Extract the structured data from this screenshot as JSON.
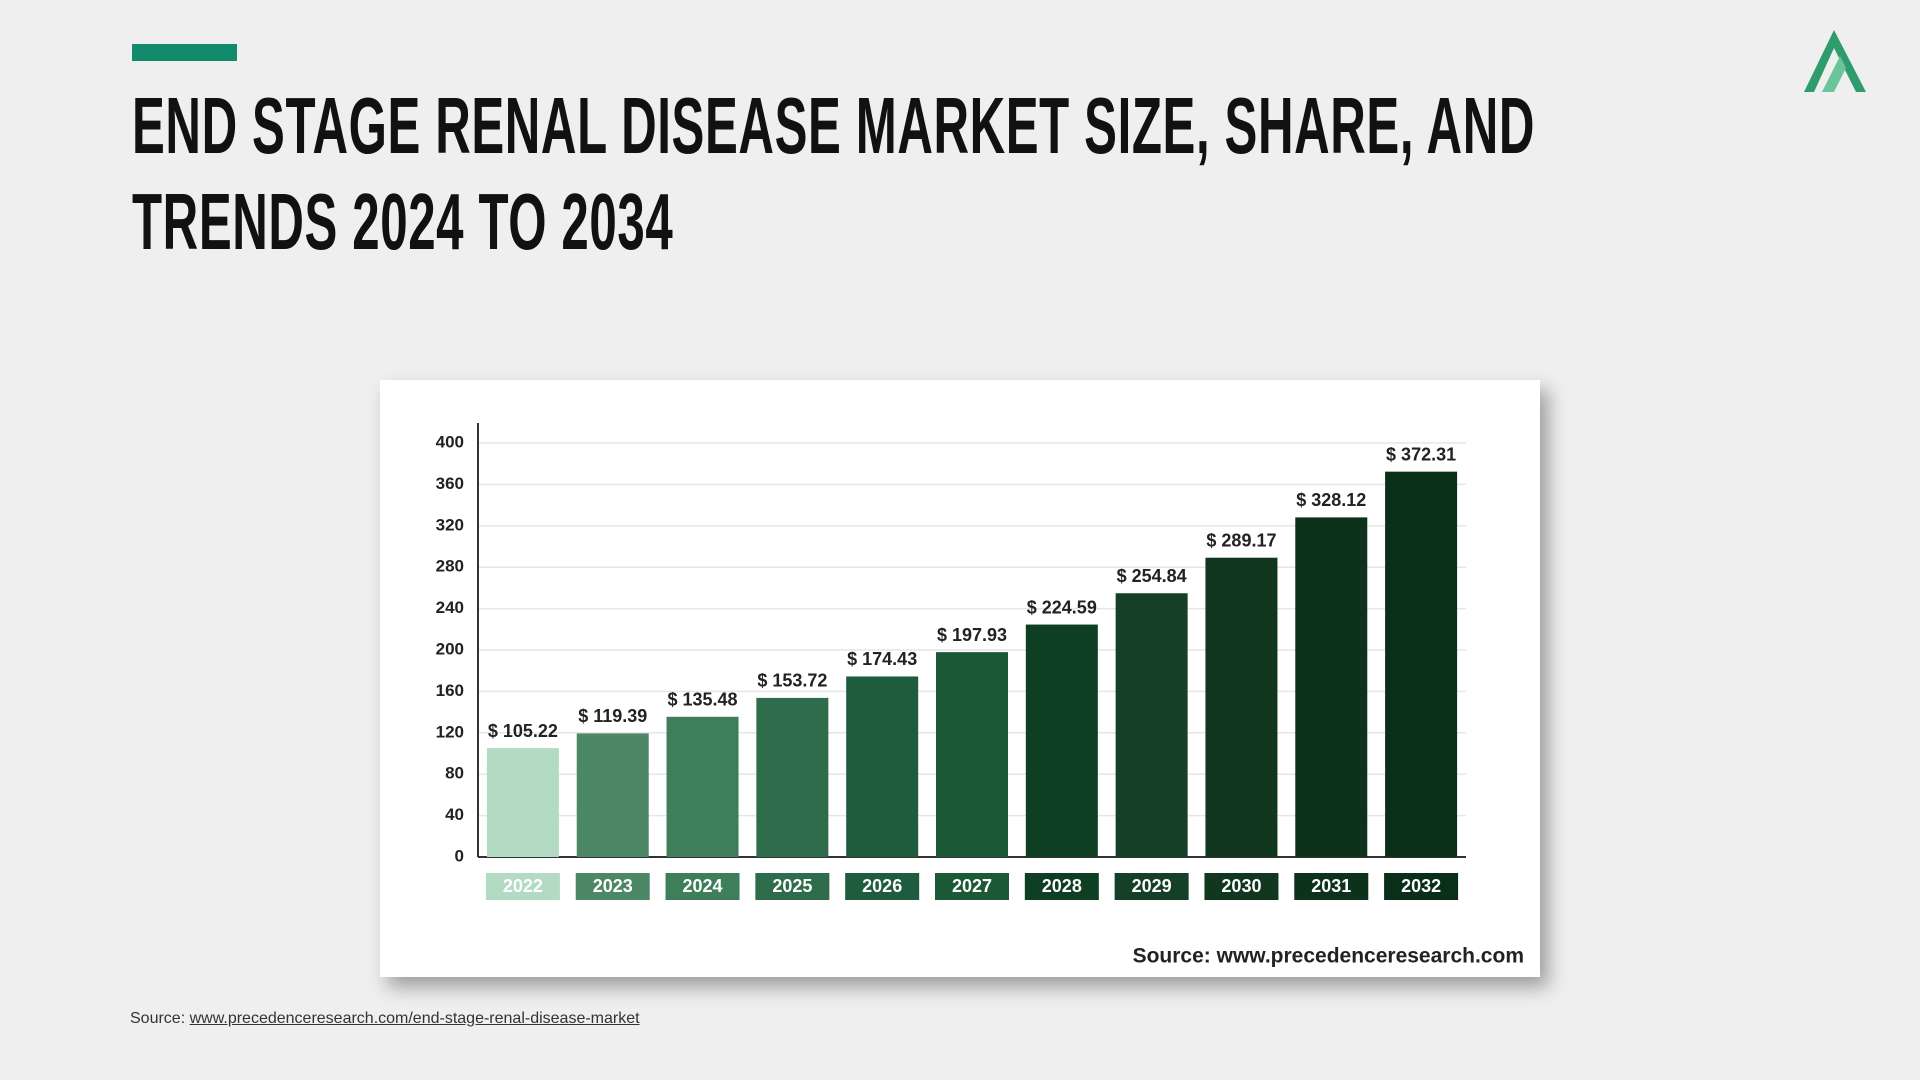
{
  "chart_data": {
    "type": "bar",
    "title": "END STAGE RENAL DISEASE MARKET SIZE, SHARE, AND TRENDS 2024 TO 2034",
    "categories": [
      "2022",
      "2023",
      "2024",
      "2025",
      "2026",
      "2027",
      "2028",
      "2029",
      "2030",
      "2031",
      "2032"
    ],
    "values": [
      105.22,
      119.39,
      135.48,
      153.72,
      174.43,
      197.93,
      224.59,
      254.84,
      289.17,
      328.12,
      372.31
    ],
    "value_labels": [
      "$ 105.22",
      "$ 119.39",
      "$ 135.48",
      "$ 153.72",
      "$ 174.43",
      "$ 197.93",
      "$ 224.59",
      "$ 254.84",
      "$ 289.17",
      "$ 328.12",
      "$ 372.31"
    ],
    "colors": [
      "#b3dbc3",
      "#4d8866",
      "#3e7e5b",
      "#2f6c4b",
      "#1f5c3d",
      "#1b5937",
      "#0e3f23",
      "#163f27",
      "#12371f",
      "#0d321c",
      "#0a2f19"
    ],
    "ylim": [
      0,
      400
    ],
    "yticks": [
      0,
      40,
      80,
      120,
      160,
      200,
      240,
      280,
      320,
      360,
      400
    ],
    "grid": true,
    "source": "Source: www.precedenceresearch.com"
  },
  "footer": {
    "label": "Source:",
    "link": "www.precedenceresearch.com/end-stage-renal-disease-market"
  }
}
